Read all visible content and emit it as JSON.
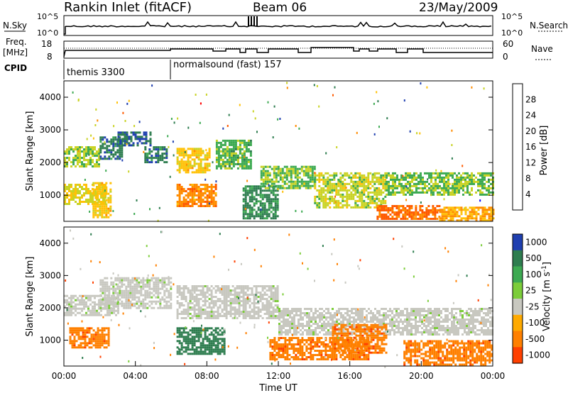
{
  "header": {
    "title": "Rankin Inlet (fitACF)",
    "beam": "Beam 06",
    "date": "23/May/2009"
  },
  "sky_panel": {
    "left_label": "N.Sky",
    "left_ticks": [
      "10^5",
      "10^0"
    ],
    "right_label": "N.Search",
    "right_ticks": [
      "10^5",
      "10^0"
    ]
  },
  "freq_panel": {
    "left_label_1": "Freq.",
    "left_label_2": "[MHz]",
    "left_ticks": [
      "18",
      "8"
    ],
    "right_label": "Nave",
    "right_ticks": [
      "60",
      "0"
    ]
  },
  "cpid_panel": {
    "label": "CPID",
    "modes": [
      {
        "name": "themis 3300",
        "start_hour": 0
      },
      {
        "name": "normalsound (fast) 157",
        "start_hour": 6
      }
    ]
  },
  "colors": {
    "power_scale": [
      "#0000ff",
      "#1f3fb0",
      "#2e7d4f",
      "#3daa52",
      "#c9d324",
      "#ffc107",
      "#ff8c00",
      "#ff5a00",
      "#ff0000"
    ],
    "velocity_scale": [
      "#1f3fb0",
      "#2e7d4f",
      "#3daa52",
      "#7ccd3a",
      "#c8c8c0",
      "#ffaa00",
      "#ff8000",
      "#ff4000",
      "#ff0000"
    ]
  },
  "chart_data": [
    {
      "type": "heatmap",
      "name": "power_panel",
      "xlabel": "",
      "ylabel": "Slant Range [km]",
      "xlim": [
        0,
        24
      ],
      "ylim": [
        200,
        4500
      ],
      "yticks": [
        "1000",
        "2000",
        "3000",
        "4000"
      ],
      "colorbar": {
        "label": "Power [dB]",
        "ticks": [
          "4",
          "8",
          "12",
          "16",
          "20",
          "24",
          "28"
        ],
        "range": [
          0,
          30
        ]
      },
      "regions": [
        {
          "x": [
            0.0,
            2.0
          ],
          "y": [
            1900,
            2500
          ],
          "value": 14
        },
        {
          "x": [
            0.0,
            2.3
          ],
          "y": [
            750,
            1350
          ],
          "value": 16
        },
        {
          "x": [
            1.6,
            2.6
          ],
          "y": [
            300,
            1400
          ],
          "value": 18
        },
        {
          "x": [
            2.0,
            3.3
          ],
          "y": [
            2100,
            2800
          ],
          "value": 8
        },
        {
          "x": [
            3.0,
            4.8
          ],
          "y": [
            2500,
            2950
          ],
          "value": 7
        },
        {
          "x": [
            4.5,
            5.8
          ],
          "y": [
            2000,
            2500
          ],
          "value": 8
        },
        {
          "x": [
            6.3,
            8.1
          ],
          "y": [
            1700,
            2450
          ],
          "value": 18
        },
        {
          "x": [
            6.3,
            8.5
          ],
          "y": [
            650,
            1350
          ],
          "value": 22
        },
        {
          "x": [
            8.5,
            10.5
          ],
          "y": [
            1800,
            2700
          ],
          "value": 12
        },
        {
          "x": [
            10.0,
            12.0
          ],
          "y": [
            300,
            1300
          ],
          "value": 9
        },
        {
          "x": [
            11.0,
            14.0
          ],
          "y": [
            1200,
            1900
          ],
          "value": 13
        },
        {
          "x": [
            14.0,
            18.0
          ],
          "y": [
            600,
            1700
          ],
          "value": 15
        },
        {
          "x": [
            17.5,
            21.0
          ],
          "y": [
            300,
            700
          ],
          "value": 24
        },
        {
          "x": [
            18.0,
            24.0
          ],
          "y": [
            1000,
            1700
          ],
          "value": 13
        },
        {
          "x": [
            21.0,
            24.0
          ],
          "y": [
            250,
            650
          ],
          "value": 20
        }
      ]
    },
    {
      "type": "heatmap",
      "name": "velocity_panel",
      "xlabel": "Time UT",
      "ylabel": "Slant Range [km]",
      "xlim": [
        0,
        24
      ],
      "ylim": [
        200,
        4500
      ],
      "xticks": [
        "00:00",
        "04:00",
        "08:00",
        "12:00",
        "16:00",
        "20:00",
        "00:00"
      ],
      "yticks": [
        "1000",
        "2000",
        "3000",
        "4000"
      ],
      "colorbar": {
        "label": "Velocity [m s^-1]",
        "ticks": [
          "1000",
          "500",
          "100",
          "25",
          "-25",
          "-100",
          "-500",
          "-1000"
        ]
      },
      "regions": [
        {
          "x": [
            0.0,
            3.0
          ],
          "y": [
            1800,
            2400
          ],
          "value": 0
        },
        {
          "x": [
            0.3,
            2.5
          ],
          "y": [
            800,
            1400
          ],
          "value": -300
        },
        {
          "x": [
            2.0,
            6.0
          ],
          "y": [
            2000,
            2950
          ],
          "value": 0
        },
        {
          "x": [
            6.3,
            9.0
          ],
          "y": [
            600,
            1400
          ],
          "value": 150
        },
        {
          "x": [
            6.3,
            12.0
          ],
          "y": [
            1700,
            2700
          ],
          "value": 0
        },
        {
          "x": [
            12.0,
            24.0
          ],
          "y": [
            1200,
            2000
          ],
          "value": 0
        },
        {
          "x": [
            11.5,
            17.0
          ],
          "y": [
            400,
            1100
          ],
          "value": -300
        },
        {
          "x": [
            15.0,
            18.0
          ],
          "y": [
            600,
            1500
          ],
          "value": -200
        },
        {
          "x": [
            19.0,
            24.0
          ],
          "y": [
            250,
            1000
          ],
          "value": -400
        }
      ]
    }
  ]
}
